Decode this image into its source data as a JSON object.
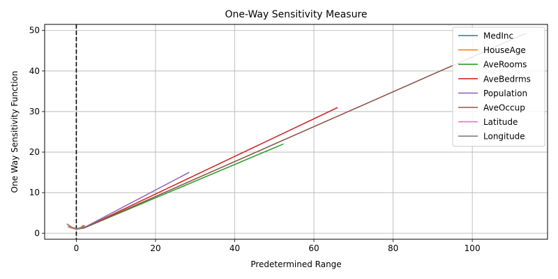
{
  "chart_data": {
    "type": "line",
    "title": "One-Way Sensitivity Measure",
    "xlabel": "Predetermined Range",
    "ylabel": "One Way Sensitivity Function",
    "xlim": [
      -8,
      119
    ],
    "ylim": [
      -1.5,
      51.5
    ],
    "xticks": [
      0,
      20,
      40,
      60,
      80,
      100
    ],
    "yticks": [
      0,
      10,
      20,
      30,
      40,
      50
    ],
    "grid": true,
    "legend_position": "top-right",
    "vline": {
      "x": 0,
      "style": "dashed",
      "color": "#000000"
    },
    "series": [
      {
        "name": "MedInc",
        "color": "#1f77b4",
        "points": [
          [
            -2,
            1.9
          ],
          [
            -1,
            1.3
          ],
          [
            0,
            1.1
          ],
          [
            1,
            1.3
          ],
          [
            2,
            1.8
          ]
        ]
      },
      {
        "name": "HouseAge",
        "color": "#ff7f0e",
        "points": [
          [
            -2.2,
            1.6
          ],
          [
            -1,
            1.2
          ],
          [
            0,
            1.0
          ],
          [
            1,
            1.3
          ],
          [
            1.8,
            2.0
          ]
        ]
      },
      {
        "name": "AveRooms",
        "color": "#2ca02c",
        "points": [
          [
            -1.5,
            1.5
          ],
          [
            0,
            1.0
          ],
          [
            2,
            1.3
          ],
          [
            52.3,
            22
          ]
        ]
      },
      {
        "name": "AveBedrms",
        "color": "#d62728",
        "points": [
          [
            -1.5,
            1.5
          ],
          [
            0,
            1.0
          ],
          [
            2,
            1.3
          ],
          [
            66,
            31
          ]
        ]
      },
      {
        "name": "Population",
        "color": "#9467bd",
        "points": [
          [
            -1.5,
            1.6
          ],
          [
            0,
            1.0
          ],
          [
            2,
            1.4
          ],
          [
            28.5,
            15
          ]
        ]
      },
      {
        "name": "AveOccup",
        "color": "#8c564b",
        "points": [
          [
            -1.5,
            1.6
          ],
          [
            0,
            1.0
          ],
          [
            2,
            1.3
          ],
          [
            113.5,
            49.3
          ]
        ]
      },
      {
        "name": "Latitude",
        "color": "#e377c2",
        "points": [
          [
            -2,
            1.8
          ],
          [
            -1,
            1.3
          ],
          [
            0,
            1.1
          ],
          [
            1,
            1.3
          ],
          [
            2,
            1.7
          ]
        ]
      },
      {
        "name": "Longitude",
        "color": "#7f7f7f",
        "points": [
          [
            -2.4,
            2.3
          ],
          [
            -1.2,
            1.5
          ],
          [
            0,
            1.1
          ],
          [
            1,
            1.3
          ],
          [
            2.2,
            1.9
          ]
        ]
      }
    ]
  }
}
